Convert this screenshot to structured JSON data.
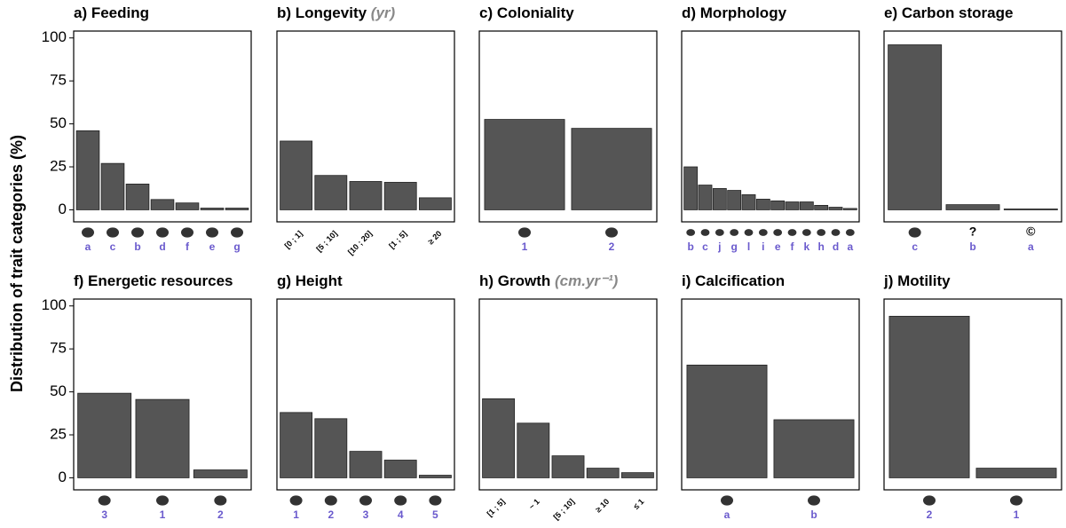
{
  "ylabel": "Distribution of trait categories (%)",
  "chart_data": [
    {
      "type": "bar",
      "title": "a) Feeding",
      "categories": [
        "a",
        "c",
        "b",
        "d",
        "f",
        "e",
        "g"
      ],
      "values": [
        46,
        27,
        15,
        6,
        4,
        1,
        1
      ],
      "ylim": [
        -7,
        104
      ],
      "yticks": [
        0,
        25,
        50,
        75,
        100
      ],
      "color": "#555555"
    },
    {
      "type": "bar",
      "title": "b) Longevity",
      "title_unit": "(yr)",
      "categories": [
        "[0 ; 1]",
        "[5 ; 10]",
        "[10 ; 20]",
        "[1 ; 5]",
        "≥ 20"
      ],
      "values": [
        40,
        20,
        16.5,
        16,
        7
      ],
      "ylim": [
        -7,
        104
      ],
      "rotate_labels": true,
      "color": "#555555"
    },
    {
      "type": "bar",
      "title": "c) Coloniality",
      "categories": [
        "1",
        "2"
      ],
      "values": [
        52.6,
        47.4
      ],
      "ylim": [
        -7,
        104
      ],
      "color": "#555555"
    },
    {
      "type": "bar",
      "title": "d) Morphology",
      "categories": [
        "b",
        "c",
        "j",
        "g",
        "l",
        "i",
        "e",
        "f",
        "k",
        "h",
        "d",
        "a"
      ],
      "values": [
        25,
        14.4,
        12.4,
        11.3,
        8.8,
        6.2,
        5.2,
        4.6,
        4.6,
        2.6,
        1.5,
        0.8
      ],
      "ylim": [
        -7,
        104
      ],
      "color": "#555555"
    },
    {
      "type": "bar",
      "title": "e) Carbon storage",
      "categories": [
        "c",
        "b",
        "a"
      ],
      "symbol_labels": [
        null,
        "?",
        "©"
      ],
      "values": [
        96,
        3,
        0.5
      ],
      "ylim": [
        -7,
        104
      ],
      "color": "#555555"
    },
    {
      "type": "bar",
      "title": "f) Energetic resources",
      "categories": [
        "3",
        "1",
        "2"
      ],
      "values": [
        49.2,
        45.6,
        4.6
      ],
      "ylim": [
        -7,
        104
      ],
      "yticks": [
        0,
        25,
        50,
        75,
        100
      ],
      "color": "#555555"
    },
    {
      "type": "bar",
      "title": "g) Height",
      "categories": [
        "1",
        "2",
        "3",
        "4",
        "5"
      ],
      "values": [
        38,
        34.4,
        15.4,
        10.3,
        1.5
      ],
      "ylim": [
        -7,
        104
      ],
      "color": "#555555"
    },
    {
      "type": "bar",
      "title": "h) Growth",
      "title_unit": "(cm.yr⁻¹)",
      "categories": [
        "[1 ; 5]",
        "~ 1",
        "[5 ; 10]",
        "≥ 10",
        "≤ 1"
      ],
      "values": [
        46,
        31.8,
        12.8,
        5.6,
        3
      ],
      "ylim": [
        -7,
        104
      ],
      "rotate_labels": true,
      "color": "#555555"
    },
    {
      "type": "bar",
      "title": "i) Calcification",
      "categories": [
        "a",
        "b"
      ],
      "values": [
        65.6,
        33.8
      ],
      "ylim": [
        -7,
        104
      ],
      "color": "#555555"
    },
    {
      "type": "bar",
      "title": "j) Motility",
      "categories": [
        "2",
        "1"
      ],
      "values": [
        94,
        5.6
      ],
      "ylim": [
        -7,
        104
      ],
      "color": "#555555"
    }
  ]
}
